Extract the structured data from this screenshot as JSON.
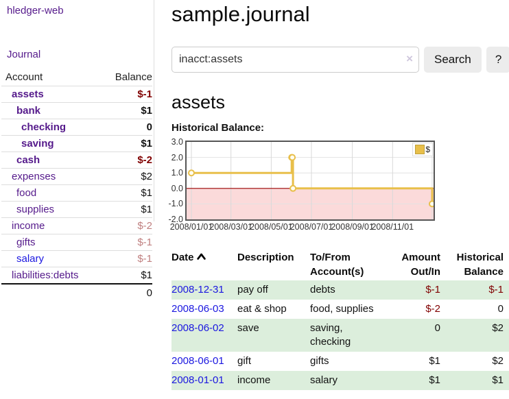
{
  "sidebar": {
    "brand": "hledger-web",
    "journal_label": "Journal",
    "accounts_table": {
      "headers": {
        "account": "Account",
        "balance": "Balance"
      },
      "rows": [
        {
          "name": "assets",
          "indent": 1,
          "bold": true,
          "balance": "$-1"
        },
        {
          "name": "bank",
          "indent": 2,
          "bold": true,
          "balance": "$1"
        },
        {
          "name": "checking",
          "indent": 3,
          "bold": true,
          "balance": "0"
        },
        {
          "name": "saving",
          "indent": 3,
          "bold": true,
          "balance": "$1"
        },
        {
          "name": "cash",
          "indent": 2,
          "bold": true,
          "balance": "$-2"
        },
        {
          "name": "expenses",
          "indent": 1,
          "bold": false,
          "balance": "$2"
        },
        {
          "name": "food",
          "indent": 2,
          "bold": false,
          "balance": "$1"
        },
        {
          "name": "supplies",
          "indent": 2,
          "bold": false,
          "balance": "$1"
        },
        {
          "name": "income",
          "indent": 1,
          "bold": false,
          "balance": "$-2"
        },
        {
          "name": "gifts",
          "indent": 2,
          "bold": false,
          "balance": "$-1"
        },
        {
          "name": "salary",
          "indent": 2,
          "bold": false,
          "balance": "$-1",
          "unvisited": true
        },
        {
          "name": "liabilities:debts",
          "indent": 1,
          "bold": false,
          "balance": "$1"
        }
      ],
      "total": "0"
    }
  },
  "main": {
    "title": "sample.journal",
    "search": {
      "value": "inacct:assets",
      "clear_icon": "×",
      "button_label": "Search",
      "help_label": "?"
    },
    "account_heading": "assets",
    "register": {
      "headers": {
        "date": "Date",
        "description": "Description",
        "accounts": "To/From Account(s)",
        "amount": "Amount Out/In",
        "balance": "Historical Balance"
      },
      "rows": [
        {
          "date": "2008-12-31",
          "description": "pay off",
          "accounts": "debts",
          "amount": "$-1",
          "balance": "$-1"
        },
        {
          "date": "2008-06-03",
          "description": "eat & shop",
          "accounts": "food, supplies",
          "amount": "$-2",
          "balance": "0"
        },
        {
          "date": "2008-06-02",
          "description": "save",
          "accounts": "saving,\nchecking",
          "amount": "0",
          "balance": "$2"
        },
        {
          "date": "2008-06-01",
          "description": "gift",
          "accounts": "gifts",
          "amount": "$1",
          "balance": "$2"
        },
        {
          "date": "2008-01-01",
          "description": "income",
          "accounts": "salary",
          "amount": "$1",
          "balance": "$1"
        }
      ]
    }
  },
  "chart_data": {
    "type": "line",
    "step": "after",
    "title": "Historical Balance:",
    "series": [
      {
        "name": "$",
        "color": "#e8bf4a",
        "points": [
          [
            "2008/01/01",
            1
          ],
          [
            "2008/06/01",
            2
          ],
          [
            "2008/06/02",
            2
          ],
          [
            "2008/06/03",
            0
          ],
          [
            "2008/12/31",
            -1
          ]
        ]
      }
    ],
    "x_range": [
      "2008/01/01",
      "2008/12/31"
    ],
    "x_ticks": [
      "2008/01/01",
      "2008/03/01",
      "2008/05/01",
      "2008/07/01",
      "2008/09/01",
      "2008/11/01"
    ],
    "y_ticks": [
      "3.0",
      "2.0",
      "1.0",
      "0.0",
      "-1.0",
      "-2.0"
    ],
    "ylim": [
      -2,
      3
    ],
    "grid": true,
    "legend": {
      "label": "$",
      "position": "top-right"
    },
    "negative_region_fill": "#fbdada",
    "zero_line_color": "#990000",
    "marker_fill": "#fffdf0"
  },
  "colors": {
    "link_visited": "#551a8b",
    "link_unvisited": "#1a16e0",
    "negative_strong": "#800000",
    "negative_weak": "#c08080",
    "row_highlight_green": "#dceedc",
    "chart_line_gold": "#e8bf4a"
  }
}
